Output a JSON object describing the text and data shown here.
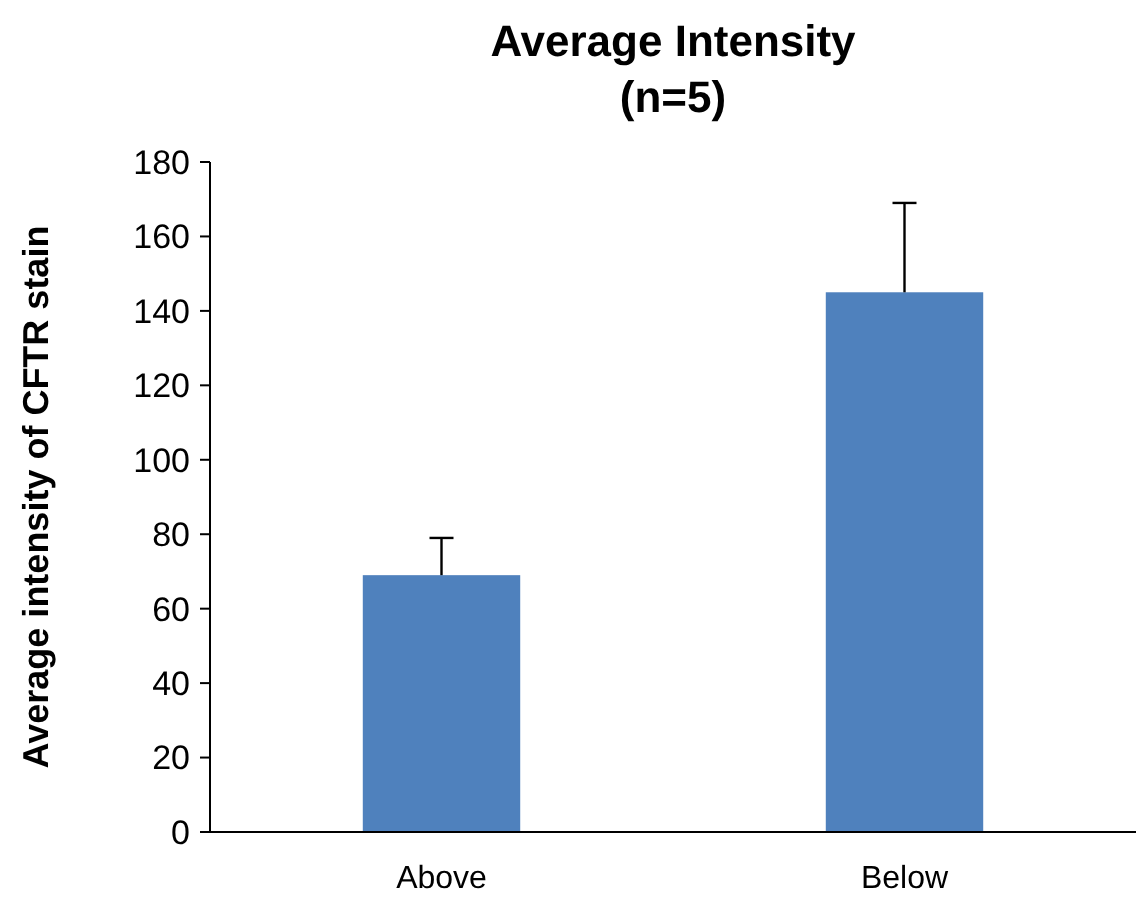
{
  "chart_data": {
    "type": "bar",
    "title": "Average Intensity\n(n=5)",
    "ylabel": "Average intensity of CFTR stain",
    "categories": [
      "Above",
      "Below"
    ],
    "values": [
      69,
      145
    ],
    "color": "#4f81bd",
    "errors": [
      [
        69,
        79
      ],
      [
        145,
        169
      ]
    ],
    "ylim": [
      0,
      180
    ],
    "yticks": [
      0,
      20,
      40,
      60,
      80,
      100,
      120,
      140,
      160,
      180
    ],
    "grid": false
  }
}
